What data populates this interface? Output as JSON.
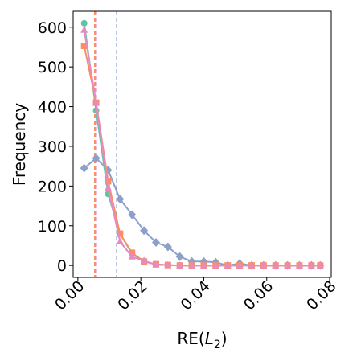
{
  "chart_data": {
    "type": "line",
    "title": "",
    "xlabel_prefix": "RE(",
    "xlabel_var": "L",
    "xlabel_sub": "2",
    "xlabel_suffix": ")",
    "ylabel": "Frequency",
    "xlim": [
      -0.0015,
      0.0805
    ],
    "ylim": [
      -30,
      640
    ],
    "xticks": [
      0.0,
      0.02,
      0.04,
      0.06,
      0.08
    ],
    "xtick_labels": [
      "0.00",
      "0.02",
      "0.04",
      "0.06",
      "0.08"
    ],
    "yticks": [
      0,
      100,
      200,
      300,
      400,
      500,
      600
    ],
    "ytick_labels": [
      "0",
      "100",
      "200",
      "300",
      "400",
      "500",
      "600"
    ],
    "grid": false,
    "legend": "none",
    "x": [
      0.002,
      0.0058,
      0.0096,
      0.0134,
      0.0172,
      0.021,
      0.0248,
      0.0286,
      0.0324,
      0.0362,
      0.04,
      0.0438,
      0.0476,
      0.0514,
      0.0552,
      0.059,
      0.0628,
      0.0666,
      0.0704,
      0.0742,
      0.077
    ],
    "series": [
      {
        "color": "#66c2a5",
        "marker": "circle",
        "values": [
          610,
          390,
          180,
          80,
          30,
          10,
          3,
          1,
          0,
          0,
          0,
          0,
          0,
          0,
          0,
          0,
          0,
          0,
          0,
          0,
          0
        ]
      },
      {
        "color": "#8da0cb",
        "marker": "diamond",
        "values": [
          245,
          270,
          240,
          167,
          128,
          88,
          58,
          47,
          22,
          10,
          10,
          8,
          0,
          5,
          0,
          0,
          0,
          0,
          0,
          0,
          0
        ]
      },
      {
        "color": "#fc8d62",
        "marker": "square",
        "values": [
          553,
          410,
          212,
          80,
          32,
          10,
          3,
          1,
          0,
          0,
          0,
          0,
          0,
          0,
          0,
          0,
          0,
          0,
          0,
          0,
          0
        ]
      },
      {
        "color": "#e78ac3",
        "marker": "triangle",
        "values": [
          593,
          410,
          195,
          60,
          22,
          12,
          2,
          1,
          0,
          0,
          0,
          0,
          0,
          0,
          0,
          0,
          0,
          0,
          0,
          0,
          0
        ]
      }
    ],
    "vlines": [
      {
        "x": 0.0054,
        "color": "#fc8d62",
        "dash": "dashed"
      },
      {
        "x": 0.0058,
        "color": "#e78ac3",
        "dash": "dashed"
      },
      {
        "x": 0.0123,
        "color": "#8da0cb",
        "dash": "dashed"
      }
    ]
  }
}
